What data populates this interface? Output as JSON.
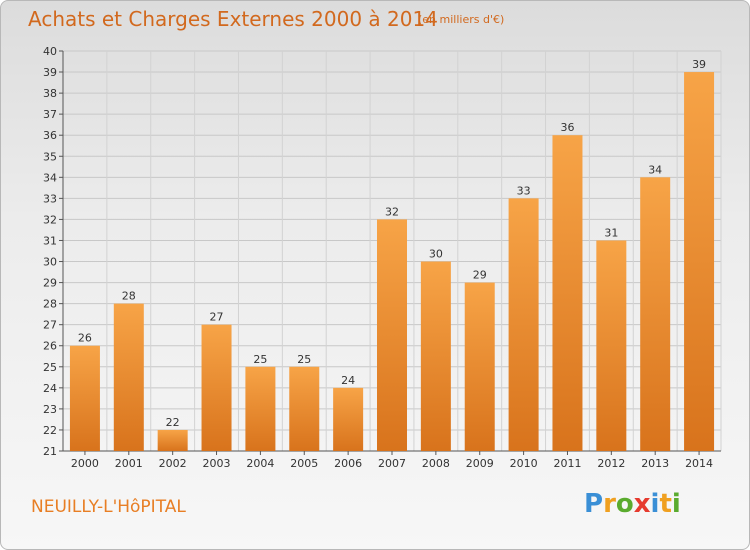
{
  "title": "Achats et Charges Externes 2000 à 2014",
  "subtitle": "(en milliers d'€)",
  "place": "NEUILLY-L'HôPITAL",
  "logo": {
    "text": "Proxiti",
    "letters": [
      {
        "ch": "P",
        "color": "#3a8fd6"
      },
      {
        "ch": "r",
        "color": "#f0a020"
      },
      {
        "ch": "o",
        "color": "#5aab2e"
      },
      {
        "ch": "x",
        "color": "#e63a2e"
      },
      {
        "ch": "i",
        "color": "#3a8fd6"
      },
      {
        "ch": "t",
        "color": "#f0a020"
      },
      {
        "ch": "i",
        "color": "#5aab2e"
      }
    ]
  },
  "colors": {
    "bar_light": "#f7a447",
    "bar_dark": "#d8731c",
    "accent": "#d2691e"
  },
  "chart_data": {
    "type": "bar",
    "categories": [
      "2000",
      "2001",
      "2002",
      "2003",
      "2004",
      "2005",
      "2006",
      "2007",
      "2008",
      "2009",
      "2010",
      "2011",
      "2012",
      "2013",
      "2014"
    ],
    "values": [
      26,
      28,
      22,
      27,
      25,
      25,
      24,
      32,
      30,
      29,
      33,
      36,
      31,
      34,
      39
    ],
    "ylim": [
      21,
      40
    ],
    "yticks": [
      21,
      22,
      23,
      24,
      25,
      26,
      27,
      28,
      29,
      30,
      31,
      32,
      33,
      34,
      35,
      36,
      37,
      38,
      39,
      40
    ],
    "grid": true
  }
}
